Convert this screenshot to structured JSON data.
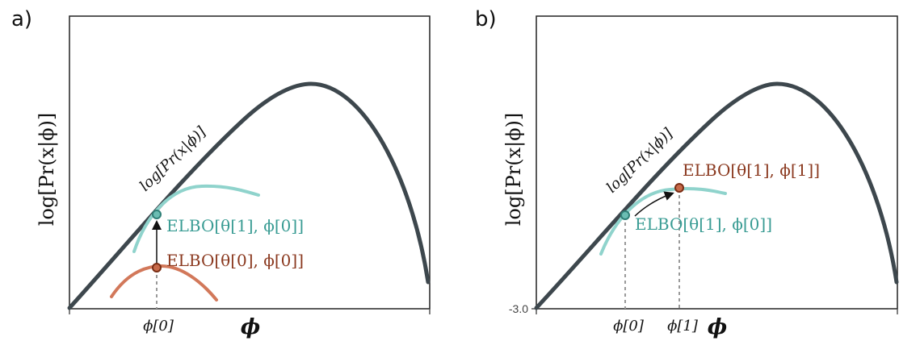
{
  "panels": [
    {
      "label": "a)",
      "ylabel": "log[Pr(x|ϕ)]",
      "xlabel": "ϕ",
      "curve_label": "log[Pr(x|ϕ)]",
      "x_ticks": [
        {
          "label": "ϕ[0]"
        }
      ],
      "y_ticks": [],
      "annotations": {
        "elbo_top": "ELBO[θ[1], ϕ[0]]",
        "elbo_bottom": "ELBO[θ[0], ϕ[0]]"
      }
    },
    {
      "label": "b)",
      "ylabel": "log[Pr(x|ϕ)]",
      "xlabel": "ϕ",
      "curve_label": "log[Pr(x|ϕ)]",
      "x_ticks": [
        {
          "label": "ϕ[0]"
        },
        {
          "label": "ϕ[1]"
        }
      ],
      "y_ticks": [
        {
          "label": "-3.0"
        }
      ],
      "annotations": {
        "elbo_top": "ELBO[θ[1], ϕ[1]]",
        "elbo_bottom": "ELBO[θ[1], ϕ[0]]"
      }
    }
  ],
  "colors": {
    "main_curve": "#3d474d",
    "teal": "#3a9c94",
    "teal_light": "#8fd3cc",
    "orange": "#d2785a",
    "brown": "#8b3a20",
    "axis": "#222222",
    "dashed": "#9a9a9a"
  }
}
